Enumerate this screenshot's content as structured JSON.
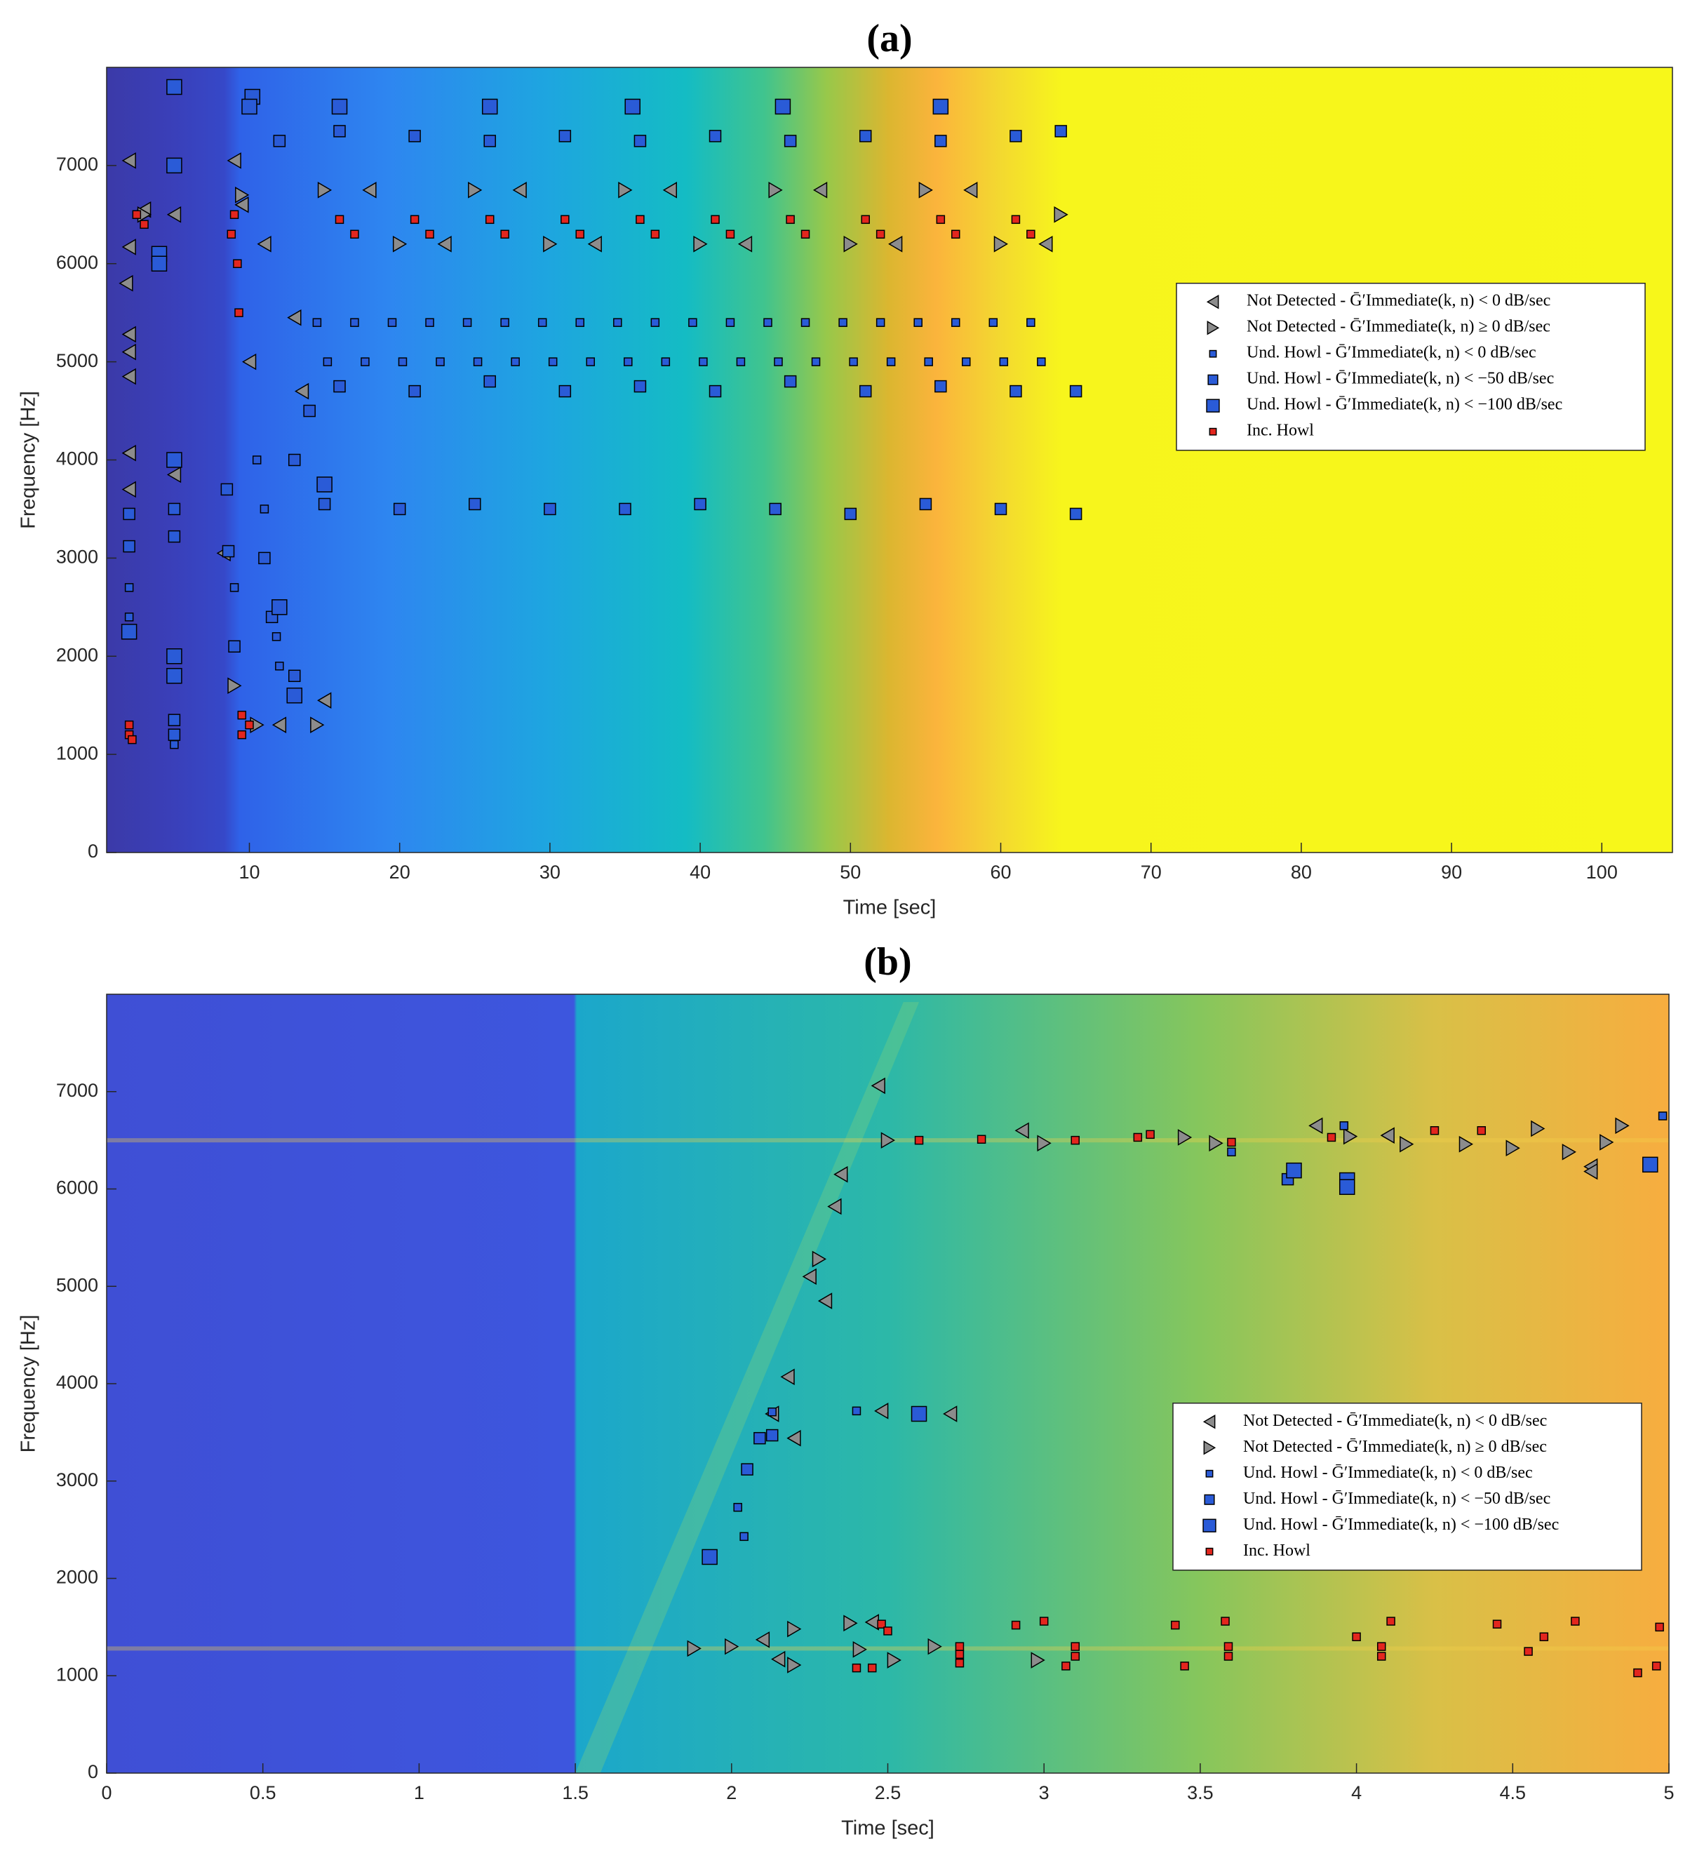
{
  "chart_data": [
    {
      "type": "scatter",
      "title": "(a)",
      "xlabel": "Time [sec]",
      "ylabel": "Frequency [Hz]",
      "xlim": [
        0.5,
        104.7
      ],
      "ylim": [
        0,
        8000
      ],
      "xticks": [
        10,
        20,
        30,
        40,
        50,
        60,
        70,
        80,
        90,
        100
      ],
      "yticks": [
        0,
        1000,
        2000,
        3000,
        4000,
        5000,
        6000,
        7000
      ],
      "legend": "east",
      "series": [
        {
          "name": "Not Detected - Ḡ′Immediate(k, n) < 0 dB/sec",
          "color": "#8c8c8c",
          "marker": "triangle-left",
          "x": [
            2,
            2,
            1.8,
            2,
            2,
            2,
            2,
            2,
            5,
            9,
            9.5,
            10,
            13,
            13.5,
            8.3,
            11,
            15,
            12,
            5,
            3,
            18,
            23,
            28,
            33,
            38,
            43,
            48,
            53,
            58,
            63
          ],
          "values": [
            7050,
            6170,
            5800,
            5280,
            5100,
            4850,
            4070,
            3700,
            3850,
            7050,
            6600,
            5000,
            5450,
            4700,
            3050,
            6200,
            1550,
            1300,
            6500,
            6550,
            6750,
            6200,
            6750,
            6200,
            6750,
            6200,
            6750,
            6200,
            6750,
            6200
          ]
        },
        {
          "name": "Not Detected - Ḡ′Immediate(k, n) ≥ 0 dB/sec",
          "color": "#8c8c8c",
          "marker": "triangle-right",
          "x": [
            15,
            20,
            25,
            30,
            35,
            40,
            45,
            50,
            55,
            60,
            64,
            14.5,
            10.5,
            9,
            9.5,
            3
          ],
          "values": [
            6750,
            6200,
            6750,
            6200,
            6750,
            6200,
            6750,
            6200,
            6750,
            6200,
            6500,
            1300,
            1300,
            1700,
            6700,
            6500
          ]
        },
        {
          "name": "Und. Howl - Ḡ′Immediate(k, n) < 0 dB/sec",
          "color": "#2a5bd7",
          "marker": "square-small",
          "x": [
            10.5,
            11,
            9,
            2,
            2,
            5,
            11.8,
            12,
            14.5,
            15.2,
            17,
            17.7,
            19.5,
            20.2,
            22,
            22.7,
            24.5,
            25.2,
            27,
            27.7,
            29.5,
            30.2,
            32,
            32.7,
            34.5,
            35.2,
            37,
            37.7,
            39.5,
            40.2,
            42,
            42.7,
            44.5,
            45.2,
            47,
            47.7,
            49.5,
            50.2,
            52,
            52.7,
            54.5,
            55.2,
            57,
            57.7,
            59.5,
            60.2,
            62,
            62.7
          ],
          "values": [
            4000,
            3500,
            2700,
            2700,
            2400,
            1100,
            2200,
            1900,
            5400,
            5000,
            5400,
            5000,
            5400,
            5000,
            5400,
            5000,
            5400,
            5000,
            5400,
            5000,
            5400,
            5000,
            5400,
            5000,
            5400,
            5000,
            5400,
            5000,
            5400,
            5000,
            5400,
            5000,
            5400,
            5000,
            5400,
            5000,
            5400,
            5000,
            5400,
            5000,
            5400,
            5000,
            5400,
            5000,
            5400,
            5000,
            5400,
            5000
          ]
        },
        {
          "name": "Und. Howl - Ḡ′Immediate(k, n) < −50 dB/sec",
          "color": "#2a5bd7",
          "marker": "square-medium",
          "x": [
            2,
            2,
            5,
            5,
            5,
            5,
            8.5,
            8.6,
            9,
            11,
            11.5,
            13,
            14,
            13,
            15,
            20,
            25,
            30,
            35,
            40,
            45,
            50,
            55,
            60,
            65,
            12,
            16,
            21,
            26,
            31,
            36,
            41,
            46,
            51,
            56,
            61,
            64,
            16,
            21,
            26,
            31,
            36,
            41,
            46,
            51,
            56,
            61,
            65
          ],
          "values": [
            3450,
            3120,
            3500,
            3220,
            1350,
            1200,
            3700,
            3070,
            2100,
            3000,
            2400,
            1800,
            4500,
            4000,
            3550,
            3500,
            3550,
            3500,
            3500,
            3550,
            3500,
            3450,
            3550,
            3500,
            3450,
            7250,
            7350,
            7300,
            7250,
            7300,
            7250,
            7300,
            7250,
            7300,
            7250,
            7300,
            7350,
            4750,
            4700,
            4800,
            4700,
            4750,
            4700,
            4800,
            4700,
            4750,
            4700,
            4700
          ]
        },
        {
          "name": "Und. Howl - Ḡ′Immediate(k, n) < −100 dB/sec",
          "color": "#2a5bd7",
          "marker": "square-large",
          "x": [
            5,
            5,
            2,
            5,
            5,
            5,
            10.2,
            10,
            12,
            13,
            16,
            26,
            35.5,
            45.5,
            56,
            4,
            4,
            15
          ],
          "values": [
            7800,
            7000,
            2250,
            4000,
            2000,
            1800,
            7700,
            7600,
            2500,
            1600,
            7600,
            7600,
            7600,
            7600,
            7600,
            6100,
            6000,
            3750
          ]
        },
        {
          "name": "Inc. Howl",
          "color": "#e3261e",
          "marker": "square-red",
          "x": [
            2,
            2,
            2.2,
            2.5,
            3,
            9,
            9.2,
            9.3,
            9.5,
            9.5,
            10,
            8.8,
            16,
            17,
            21,
            22,
            26,
            27,
            31,
            32,
            36,
            37,
            41,
            42,
            46,
            47,
            51,
            52,
            56,
            57,
            61,
            62
          ],
          "values": [
            1200,
            1300,
            1150,
            6500,
            6400,
            6500,
            6000,
            5500,
            1200,
            1400,
            1300,
            6300,
            6450,
            6300,
            6450,
            6300,
            6450,
            6300,
            6450,
            6300,
            6450,
            6300,
            6450,
            6300,
            6450,
            6300,
            6450,
            6300,
            6450,
            6300,
            6450,
            6300
          ]
        }
      ]
    },
    {
      "type": "scatter",
      "title": "(b)",
      "xlabel": "Time [sec]",
      "ylabel": "Frequency [Hz]",
      "xlim": [
        0,
        5
      ],
      "ylim": [
        0,
        8000
      ],
      "xticks": [
        0,
        0.5,
        1,
        1.5,
        2,
        2.5,
        3,
        3.5,
        4,
        4.5,
        5
      ],
      "yticks": [
        0,
        1000,
        2000,
        3000,
        4000,
        5000,
        6000,
        7000
      ],
      "legend": "southeast",
      "series": [
        {
          "name": "Not Detected - Ḡ′Immediate(k, n) < 0 dB/sec",
          "color": "#8c8c8c",
          "marker": "triangle-left",
          "x": [
            2.47,
            2.35,
            2.33,
            2.25,
            2.3,
            2.18,
            2.13,
            2.2,
            2.48,
            2.7,
            2.93,
            3.87,
            4.1,
            4.75,
            4.75,
            2.1,
            2.15,
            2.45
          ],
          "values": [
            7060,
            6150,
            5820,
            5100,
            4850,
            4070,
            3690,
            3440,
            3720,
            3690,
            6600,
            6650,
            6550,
            6230,
            6180,
            1370,
            1170,
            1550
          ]
        },
        {
          "name": "Not Detected - Ḡ′Immediate(k, n) ≥ 0 dB/sec",
          "color": "#8c8c8c",
          "marker": "triangle-right",
          "x": [
            2.5,
            3.0,
            3.45,
            3.55,
            3.98,
            4.16,
            4.35,
            4.5,
            4.58,
            4.68,
            4.8,
            4.85,
            1.88,
            2.0,
            2.2,
            2.38,
            2.41,
            2.52,
            2.2,
            2.65,
            2.28,
            2.98
          ],
          "values": [
            6500,
            6470,
            6530,
            6470,
            6540,
            6460,
            6460,
            6420,
            6620,
            6380,
            6480,
            6650,
            1280,
            1300,
            1480,
            1540,
            1270,
            1160,
            1110,
            1300,
            5280,
            1160
          ]
        },
        {
          "name": "Und. Howl - Ḡ′Immediate(k, n) < 0 dB/sec",
          "color": "#2a5bd7",
          "marker": "square-small",
          "x": [
            2.4,
            2.02,
            2.04,
            3.6,
            3.96,
            4.98,
            2.13
          ],
          "values": [
            3720,
            2730,
            2430,
            6380,
            6650,
            6750,
            3710
          ]
        },
        {
          "name": "Und. Howl - Ḡ′Immediate(k, n) < −50 dB/sec",
          "color": "#2a5bd7",
          "marker": "square-medium",
          "x": [
            2.09,
            2.05,
            2.13,
            3.78
          ],
          "values": [
            3440,
            3120,
            3470,
            6100
          ]
        },
        {
          "name": "Und. Howl - Ḡ′Immediate(k, n) < −100 dB/sec",
          "color": "#2a5bd7",
          "marker": "square-large",
          "x": [
            1.93,
            2.6,
            3.8,
            3.97,
            3.97,
            4.94
          ],
          "values": [
            2220,
            3690,
            6190,
            6090,
            6020,
            6250
          ]
        },
        {
          "name": "Inc. Howl",
          "color": "#e3261e",
          "marker": "square-red",
          "x": [
            2.48,
            2.5,
            2.45,
            2.4,
            2.73,
            2.73,
            2.73,
            2.6,
            2.8,
            3.1,
            3.3,
            3.34,
            2.91,
            3.0,
            3.07,
            3.1,
            3.1,
            3.42,
            3.45,
            3.58,
            3.59,
            3.59,
            3.6,
            3.92,
            4.0,
            4.08,
            4.08,
            4.11,
            4.4,
            4.25,
            4.45,
            4.55,
            4.6,
            4.7,
            4.9,
            4.97,
            4.96
          ],
          "values": [
            1530,
            1460,
            1080,
            1080,
            1130,
            1220,
            1300,
            6500,
            6510,
            6500,
            6530,
            6560,
            1520,
            1560,
            1100,
            1200,
            1300,
            1520,
            1100,
            1560,
            1300,
            1200,
            6480,
            6530,
            1400,
            1300,
            1200,
            1560,
            6600,
            6600,
            1530,
            1250,
            1400,
            1560,
            1030,
            1500,
            1100
          ]
        }
      ]
    }
  ]
}
